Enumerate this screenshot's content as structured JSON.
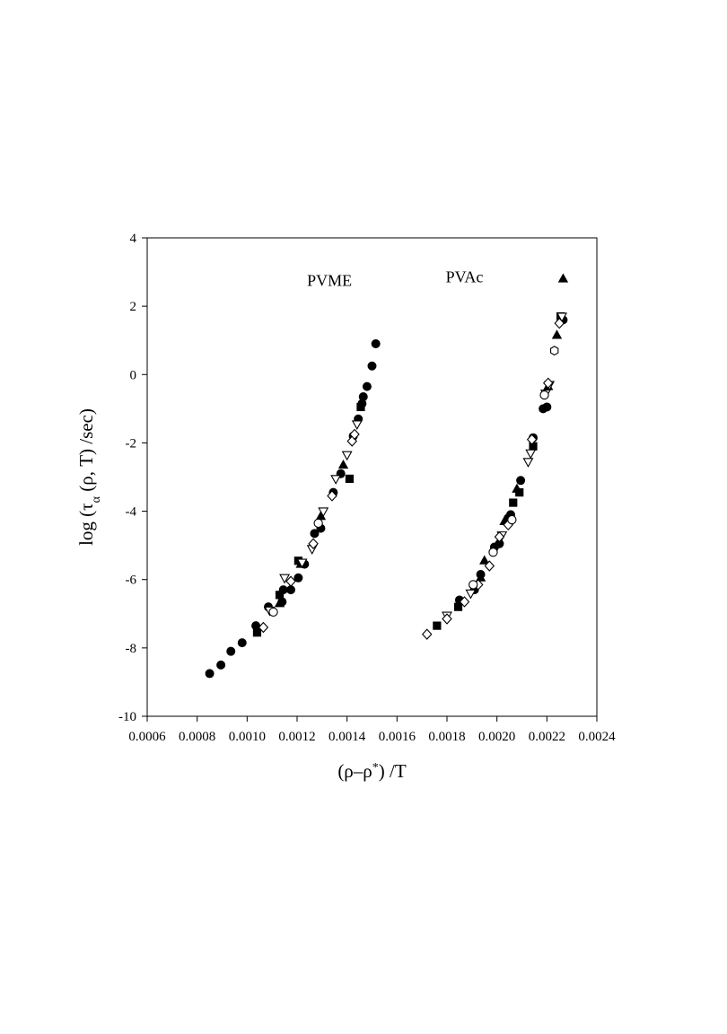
{
  "chart_data": {
    "type": "scatter",
    "title": "",
    "xlabel_parts": [
      "(ρ–ρ",
      "*",
      ") /T"
    ],
    "ylabel_parts": [
      "log (τ",
      "α",
      " (ρ, T)  /sec)"
    ],
    "xlim": [
      0.0006,
      0.0024
    ],
    "ylim": [
      -10,
      4
    ],
    "xticks": [
      "0.0006",
      "0.0008",
      "0.0010",
      "0.0012",
      "0.0014",
      "0.0016",
      "0.0018",
      "0.0020",
      "0.0022",
      "0.0024"
    ],
    "yticks": [
      "4",
      "2",
      "0",
      "-2",
      "-4",
      "-6",
      "-8",
      "-10"
    ],
    "annotations": [
      {
        "text": "PVME",
        "x": 0.00133,
        "y": 2.6
      },
      {
        "text": "PVAc",
        "x": 0.00187,
        "y": 2.7
      }
    ],
    "series": [
      {
        "marker": "filled-circle",
        "points": [
          [
            0.00085,
            -8.75
          ],
          [
            0.000895,
            -8.5
          ],
          [
            0.000935,
            -8.1
          ],
          [
            0.00098,
            -7.85
          ],
          [
            0.001035,
            -7.35
          ],
          [
            0.001085,
            -6.8
          ],
          [
            0.00114,
            -6.65
          ],
          [
            0.001145,
            -6.3
          ],
          [
            0.001175,
            -6.3
          ],
          [
            0.001205,
            -5.95
          ],
          [
            0.00123,
            -5.55
          ],
          [
            0.00127,
            -4.65
          ],
          [
            0.001295,
            -4.5
          ],
          [
            0.001345,
            -3.45
          ],
          [
            0.001375,
            -2.9
          ],
          [
            0.001425,
            -1.8
          ],
          [
            0.001445,
            -1.3
          ],
          [
            0.00146,
            -0.85
          ],
          [
            0.001465,
            -0.65
          ],
          [
            0.00148,
            -0.35
          ],
          [
            0.0015,
            0.25
          ],
          [
            0.001515,
            0.9
          ],
          [
            0.00185,
            -6.6
          ],
          [
            0.00191,
            -6.3
          ],
          [
            0.001935,
            -5.85
          ],
          [
            0.00199,
            -5.05
          ],
          [
            0.00201,
            -4.95
          ],
          [
            0.002045,
            -4.2
          ],
          [
            0.002055,
            -4.1
          ],
          [
            0.002095,
            -3.1
          ],
          [
            0.002145,
            -1.85
          ],
          [
            0.002185,
            -1.0
          ],
          [
            0.0022,
            -0.95
          ],
          [
            0.002265,
            1.6
          ]
        ]
      },
      {
        "marker": "filled-square",
        "points": [
          [
            0.00104,
            -7.55
          ],
          [
            0.00113,
            -6.45
          ],
          [
            0.001205,
            -5.45
          ],
          [
            0.00141,
            -3.05
          ],
          [
            0.001455,
            -0.95
          ],
          [
            0.00176,
            -7.35
          ],
          [
            0.001845,
            -6.8
          ],
          [
            0.002065,
            -3.75
          ],
          [
            0.00209,
            -3.45
          ],
          [
            0.002145,
            -2.1
          ],
          [
            0.002255,
            1.7
          ]
        ]
      },
      {
        "marker": "filled-triangle-up",
        "points": [
          [
            0.00113,
            -6.7
          ],
          [
            0.001215,
            -5.55
          ],
          [
            0.001295,
            -4.15
          ],
          [
            0.001385,
            -2.65
          ],
          [
            0.001935,
            -5.95
          ],
          [
            0.00195,
            -5.45
          ],
          [
            0.00203,
            -4.3
          ],
          [
            0.00208,
            -3.35
          ],
          [
            0.002205,
            -0.35
          ],
          [
            0.00224,
            1.15
          ],
          [
            0.002265,
            2.8
          ]
        ]
      },
      {
        "marker": "open-triangle-down",
        "points": [
          [
            0.00109,
            -6.9
          ],
          [
            0.00115,
            -5.95
          ],
          [
            0.00122,
            -5.5
          ],
          [
            0.00126,
            -5.1
          ],
          [
            0.001305,
            -4.0
          ],
          [
            0.001355,
            -3.05
          ],
          [
            0.0014,
            -2.35
          ],
          [
            0.00144,
            -1.45
          ],
          [
            0.0018,
            -7.05
          ],
          [
            0.001895,
            -6.4
          ],
          [
            0.00202,
            -4.7
          ],
          [
            0.002125,
            -2.55
          ],
          [
            0.002135,
            -2.3
          ],
          [
            0.002195,
            -0.55
          ],
          [
            0.00221,
            -0.3
          ],
          [
            0.00226,
            1.7
          ]
        ]
      },
      {
        "marker": "open-diamond",
        "points": [
          [
            0.001065,
            -7.4
          ],
          [
            0.001175,
            -6.05
          ],
          [
            0.001265,
            -4.95
          ],
          [
            0.00134,
            -3.55
          ],
          [
            0.00142,
            -1.95
          ],
          [
            0.00143,
            -1.75
          ],
          [
            0.00172,
            -7.6
          ],
          [
            0.0018,
            -7.15
          ],
          [
            0.00187,
            -6.65
          ],
          [
            0.001925,
            -6.15
          ],
          [
            0.00197,
            -5.6
          ],
          [
            0.00201,
            -4.75
          ],
          [
            0.002045,
            -4.4
          ],
          [
            0.00214,
            -1.9
          ],
          [
            0.002205,
            -0.25
          ],
          [
            0.00225,
            1.5
          ]
        ]
      },
      {
        "marker": "open-circle",
        "points": [
          [
            0.001105,
            -6.95
          ],
          [
            0.001285,
            -4.35
          ],
          [
            0.001905,
            -6.15
          ],
          [
            0.001985,
            -5.2
          ],
          [
            0.00206,
            -4.25
          ],
          [
            0.00219,
            -0.6
          ]
        ]
      },
      {
        "marker": "open-hexagon",
        "points": [
          [
            0.00223,
            0.7
          ]
        ]
      }
    ]
  }
}
